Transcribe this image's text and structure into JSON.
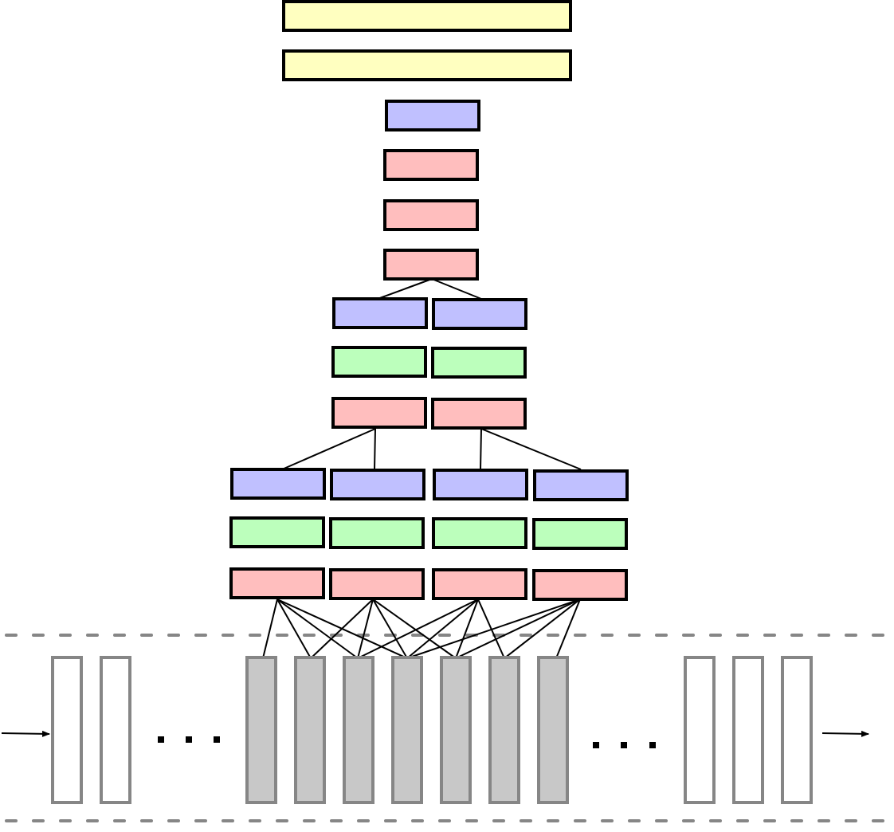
{
  "colors": {
    "yellow": "#ffffc0",
    "blue": "#c0c0ff",
    "pink": "#ffbebe",
    "green": "#bcffbc",
    "frame_stroke": "#868686",
    "frame_active": "#c8c8c8",
    "line": "#000000"
  },
  "diagram": {
    "layers_top_to_bottom": [
      {
        "kind": "yellow",
        "count": 1
      },
      {
        "kind": "yellow",
        "count": 1
      },
      {
        "kind": "blue",
        "count": 1
      },
      {
        "kind": "pink",
        "count": 1
      },
      {
        "kind": "pink",
        "count": 1
      },
      {
        "kind": "pink",
        "count": 1
      },
      {
        "kind": "blue",
        "count": 2
      },
      {
        "kind": "green",
        "count": 2
      },
      {
        "kind": "pink",
        "count": 2
      },
      {
        "kind": "blue",
        "count": 4
      },
      {
        "kind": "green",
        "count": 4
      },
      {
        "kind": "pink",
        "count": 4
      }
    ],
    "input_sequence": {
      "leading_frames": 2,
      "active_frames": 7,
      "trailing_frames": 3,
      "ellipsis_count": 2,
      "arrows": [
        "input-arrow",
        "output-arrow"
      ]
    }
  }
}
